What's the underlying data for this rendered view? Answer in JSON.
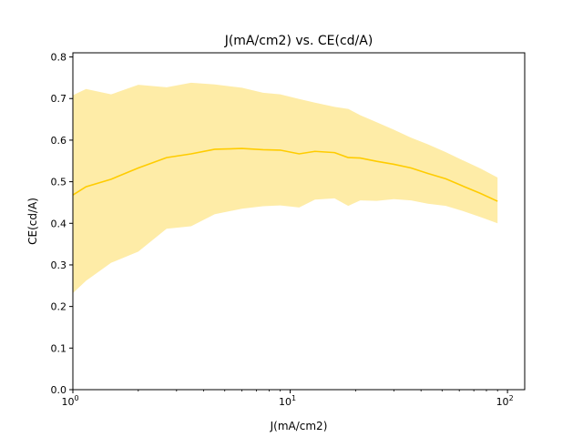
{
  "chart_data": {
    "type": "area",
    "title": "J(mA/cm2) vs. CE(cd/A)",
    "xlabel": "J(mA/cm2)",
    "ylabel": "CE(cd/A)",
    "xscale": "log",
    "xlim": [
      1,
      120
    ],
    "ylim": [
      0,
      0.81
    ],
    "grid": false,
    "x_ticks": [
      {
        "value": 1,
        "base": "10",
        "exp": "0"
      },
      {
        "value": 10,
        "base": "10",
        "exp": "1"
      },
      {
        "value": 100,
        "base": "10",
        "exp": "2"
      }
    ],
    "y_ticks": [
      {
        "value": 0.0,
        "label": "0.0"
      },
      {
        "value": 0.1,
        "label": "0.1"
      },
      {
        "value": 0.2,
        "label": "0.2"
      },
      {
        "value": 0.3,
        "label": "0.3"
      },
      {
        "value": 0.4,
        "label": "0.4"
      },
      {
        "value": 0.5,
        "label": "0.5"
      },
      {
        "value": 0.6,
        "label": "0.6"
      },
      {
        "value": 0.7,
        "label": "0.7"
      },
      {
        "value": 0.8,
        "label": "0.8"
      }
    ],
    "colors": {
      "line": "#ffcc00",
      "band": "#fde68a"
    },
    "series": [
      {
        "x": [
          1.0,
          1.15,
          1.5,
          2.0,
          2.7,
          3.5,
          4.5,
          6.0,
          7.5,
          9.0,
          11.0,
          13.0,
          16.0,
          18.5,
          21.0,
          25.0,
          30.0,
          36.0,
          43.0,
          52.0,
          62.0,
          75.0,
          90.0
        ],
        "y": [
          0.468,
          0.488,
          0.506,
          0.533,
          0.558,
          0.567,
          0.578,
          0.58,
          0.577,
          0.576,
          0.567,
          0.573,
          0.57,
          0.558,
          0.557,
          0.549,
          0.542,
          0.533,
          0.52,
          0.507,
          0.49,
          0.472,
          0.453
        ],
        "upper": [
          0.708,
          0.723,
          0.71,
          0.733,
          0.727,
          0.738,
          0.734,
          0.726,
          0.714,
          0.71,
          0.699,
          0.69,
          0.68,
          0.675,
          0.66,
          0.643,
          0.625,
          0.606,
          0.59,
          0.571,
          0.552,
          0.532,
          0.51
        ],
        "lower": [
          0.232,
          0.262,
          0.305,
          0.332,
          0.387,
          0.393,
          0.422,
          0.435,
          0.441,
          0.443,
          0.438,
          0.457,
          0.46,
          0.442,
          0.455,
          0.454,
          0.458,
          0.455,
          0.447,
          0.442,
          0.43,
          0.415,
          0.4
        ]
      }
    ]
  }
}
